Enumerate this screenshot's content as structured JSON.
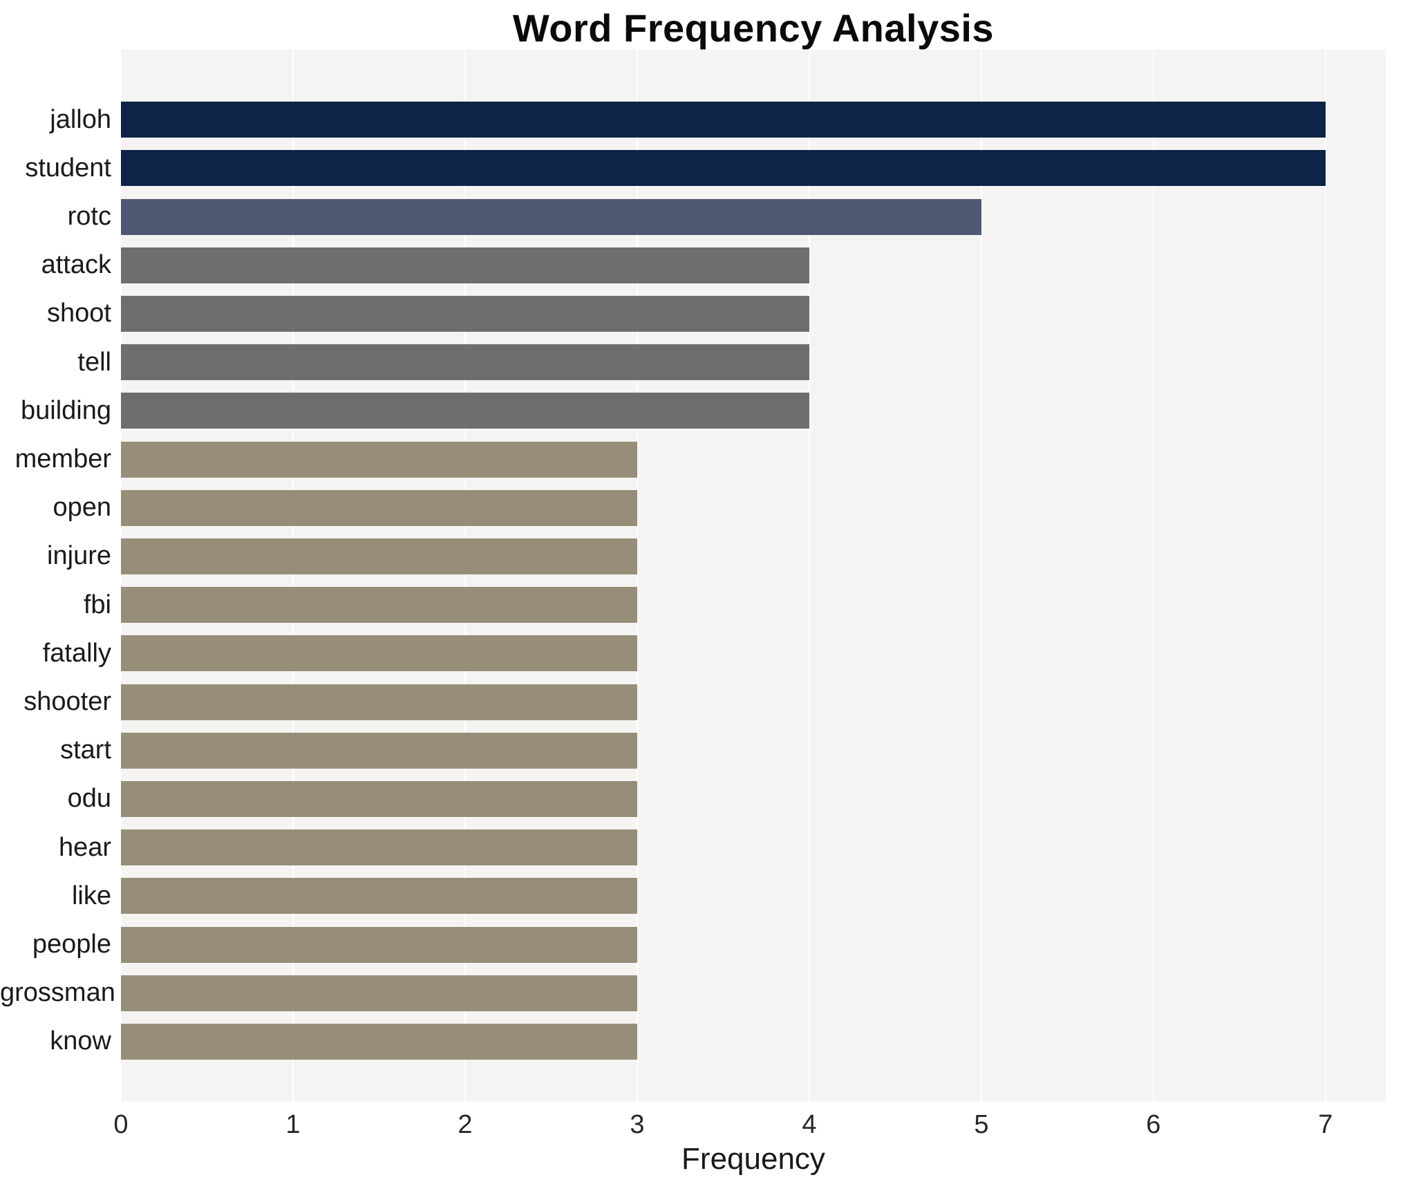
{
  "chart_data": {
    "type": "bar",
    "orientation": "horizontal",
    "title": "Word Frequency Analysis",
    "xlabel": "Frequency",
    "ylabel": "",
    "categories": [
      "jalloh",
      "student",
      "rotc",
      "attack",
      "shoot",
      "tell",
      "building",
      "member",
      "open",
      "injure",
      "fbi",
      "fatally",
      "shooter",
      "start",
      "odu",
      "hear",
      "like",
      "people",
      "grossman",
      "know"
    ],
    "values": [
      7,
      7,
      5,
      4,
      4,
      4,
      4,
      3,
      3,
      3,
      3,
      3,
      3,
      3,
      3,
      3,
      3,
      3,
      3,
      3
    ],
    "bar_colors": [
      "#0d2347",
      "#0d2347",
      "#4f5872",
      "#6e6e6e",
      "#6e6e6e",
      "#6e6e6e",
      "#6e6e6e",
      "#968e79",
      "#968e79",
      "#968e79",
      "#968e79",
      "#968e79",
      "#968e79",
      "#968e79",
      "#968e79",
      "#968e79",
      "#968e79",
      "#968e79",
      "#968e79",
      "#968e79"
    ],
    "xticks": [
      0,
      1,
      2,
      3,
      4,
      5,
      6,
      7
    ],
    "xlim": [
      0,
      7.35
    ],
    "grid": true,
    "grid_color": "#ffffff",
    "plot_bg": "#f5f4f2",
    "legend": false
  }
}
